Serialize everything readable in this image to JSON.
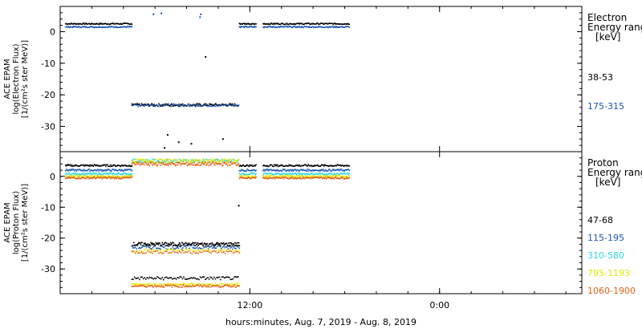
{
  "xlabel": "hours:minutes, Aug.  7, 2019 - Aug.  8, 2019",
  "x_ticks": [
    {
      "label": "12:00",
      "hour": 12
    },
    {
      "label": "0:00",
      "hour": 24
    }
  ],
  "chart_data": [
    {
      "type": "scatter",
      "panel": "electron",
      "ylabel_lines": [
        "ACE EPAM",
        "log(Electron Flux)",
        "[1/(cm²s ster MeV)]"
      ],
      "ylim": [
        -38,
        8
      ],
      "y_ticks": [
        0,
        -10,
        -20,
        -30
      ],
      "xlim_hours": [
        0,
        33
      ],
      "legend_title_lines": [
        "Electron",
        "Energy ranges",
        "[keV]"
      ],
      "series": [
        {
          "name": "38-53",
          "color": "#000000",
          "segments": [
            {
              "x": [
                0.3,
                4.5
              ],
              "y": 2.5
            },
            {
              "x": 4.5,
              "x_end": 11.3,
              "y": -23.2
            },
            {
              "x": 11.3,
              "x_end": 12.4,
              "y": 2.5
            },
            {
              "x": 12.8,
              "x_end": 18.3,
              "y": 2.5
            }
          ],
          "isolated": [
            [
              9.2,
              -8
            ],
            [
              7.5,
              -35
            ],
            [
              8.3,
              -35.5
            ],
            [
              10.3,
              -34
            ],
            [
              6.8,
              -32.7
            ],
            [
              6.6,
              -36.8
            ]
          ]
        },
        {
          "name": "175-315",
          "color": "#1a55b0",
          "segments": [
            {
              "x": [
                0.3,
                4.5
              ],
              "y": 1.5
            },
            {
              "x": [
                11.3,
                12.4
              ],
              "y": 1.5
            },
            {
              "x": [
                12.8,
                18.3
              ],
              "y": 1.5
            }
          ],
          "isolated": [
            [
              5.9,
              5.5
            ],
            [
              6.4,
              5.8
            ],
            [
              8.9,
              5.5
            ],
            [
              8.85,
              4.6
            ]
          ]
        }
      ]
    },
    {
      "type": "scatter",
      "panel": "proton",
      "ylabel_lines": [
        "ACE EPAM",
        "log(Proton Flux)",
        "[1/(cm²s ster MeV)]"
      ],
      "ylim": [
        -38,
        8
      ],
      "y_ticks": [
        0,
        -10,
        -20,
        -30
      ],
      "xlim_hours": [
        0,
        33
      ],
      "legend_title_lines": [
        "Proton",
        "Energy ranges",
        "[keV]"
      ],
      "series": [
        {
          "name": "47-68",
          "color": "#000000",
          "levels": {
            "quiet": 3.5,
            "active": -22,
            "active_low": -33
          }
        },
        {
          "name": "115-195",
          "color": "#1a55b0",
          "levels": {
            "quiet": 2,
            "active": -23
          }
        },
        {
          "name": "310-580",
          "color": "#2fd8e0",
          "levels": {
            "quiet": 0.8,
            "active": 5
          }
        },
        {
          "name": "795-1193",
          "color": "#e6e600",
          "levels": {
            "quiet": 0,
            "active": 5,
            "active_low": -35
          }
        },
        {
          "name": "1060-1900",
          "color": "#e06010",
          "levels": {
            "quiet": -0.5,
            "active": 4,
            "active_low": -35.5
          }
        }
      ]
    }
  ]
}
